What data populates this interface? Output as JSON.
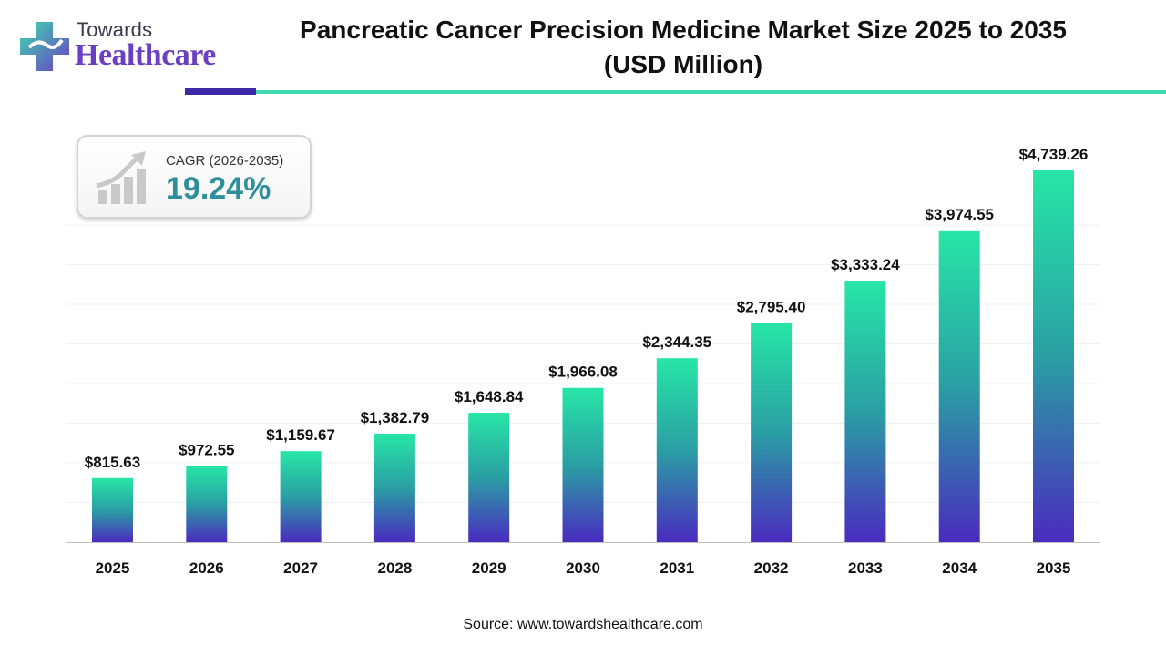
{
  "brand": {
    "line1": "Towards",
    "line2": "Healthcare"
  },
  "header": {
    "title_line1": "Pancreatic Cancer Precision Medicine Market Size 2025 to 2035",
    "title_line2": "(USD Million)"
  },
  "cagr": {
    "label": "CAGR (2026-2035)",
    "value": "19.24%"
  },
  "source": "Source: www.towardshealthcare.com",
  "colors": {
    "bar_top": "#27e6a6",
    "bar_mid": "#2a9fa4",
    "bar_bottom": "#4a2bbf",
    "accent_dark": "#3b2aa6",
    "accent_teal": "#3ed9b0"
  },
  "chart_data": {
    "type": "bar",
    "title": "Pancreatic Cancer Precision Medicine Market Size 2025 to 2035 (USD Million)",
    "categories": [
      "2025",
      "2026",
      "2027",
      "2028",
      "2029",
      "2030",
      "2031",
      "2032",
      "2033",
      "2034",
      "2035"
    ],
    "values": [
      815.63,
      972.55,
      1159.67,
      1382.79,
      1648.84,
      1966.08,
      2344.35,
      2795.4,
      3333.24,
      3974.55,
      4739.26
    ],
    "labels": [
      "$815.63",
      "$972.55",
      "$1,159.67",
      "$1,382.79",
      "$1,648.84",
      "$1,966.08",
      "$2,344.35",
      "$2,795.40",
      "$3,333.24",
      "$3,974.55",
      "$4,739.26"
    ],
    "ylim": [
      0,
      5000
    ],
    "grid": true,
    "legend": "none"
  }
}
